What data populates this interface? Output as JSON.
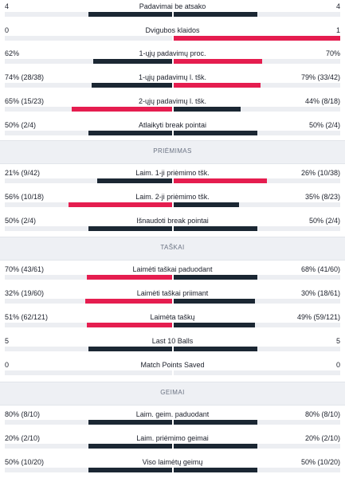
{
  "colors": {
    "winner": "#e51d4f",
    "loser": "#1b2733",
    "track": "#eceef2"
  },
  "sections": [
    {
      "title": "",
      "rows": [
        {
          "label": "Padavimai be atsako",
          "left": "4",
          "right": "4",
          "lp": 0.5,
          "rp": 0.5,
          "win": "none"
        },
        {
          "label": "Dvigubos klaidos",
          "left": "0",
          "right": "1",
          "lp": 0,
          "rp": 1,
          "win": "right"
        },
        {
          "label": "1-ųjų padavimų proc.",
          "left": "62%",
          "right": "70%",
          "lp": 0.47,
          "rp": 0.53,
          "win": "right"
        },
        {
          "label": "1-ųjų padavimų l. tšk.",
          "left": "74% (28/38)",
          "right": "79% (33/42)",
          "lp": 0.48,
          "rp": 0.52,
          "win": "right"
        },
        {
          "label": "2-ųjų padavimų l. tšk.",
          "left": "65% (15/23)",
          "right": "44% (8/18)",
          "lp": 0.6,
          "rp": 0.4,
          "win": "left"
        },
        {
          "label": "Atlaikyti break pointai",
          "left": "50% (2/4)",
          "right": "50% (2/4)",
          "lp": 0.5,
          "rp": 0.5,
          "win": "none"
        }
      ]
    },
    {
      "title": "PRIĖMIMAS",
      "rows": [
        {
          "label": "Laim. 1-ji priėmimo tšk.",
          "left": "21% (9/42)",
          "right": "26% (10/38)",
          "lp": 0.45,
          "rp": 0.56,
          "win": "right"
        },
        {
          "label": "Laim. 2-ji priėmimo tšk.",
          "left": "56% (10/18)",
          "right": "35% (8/23)",
          "lp": 0.62,
          "rp": 0.39,
          "win": "left"
        },
        {
          "label": "Išnaudoti break pointai",
          "left": "50% (2/4)",
          "right": "50% (2/4)",
          "lp": 0.5,
          "rp": 0.5,
          "win": "none"
        }
      ]
    },
    {
      "title": "TAŠKAI",
      "rows": [
        {
          "label": "Laimėti taškai paduodant",
          "left": "70% (43/61)",
          "right": "68% (41/60)",
          "lp": 0.51,
          "rp": 0.5,
          "win": "left"
        },
        {
          "label": "Laimėti taškai priimant",
          "left": "32% (19/60)",
          "right": "30% (18/61)",
          "lp": 0.52,
          "rp": 0.49,
          "win": "left"
        },
        {
          "label": "Laimėta taškų",
          "left": "51% (62/121)",
          "right": "49% (59/121)",
          "lp": 0.51,
          "rp": 0.49,
          "win": "left"
        },
        {
          "label": "Last 10 Balls",
          "left": "5",
          "right": "5",
          "lp": 0.5,
          "rp": 0.5,
          "win": "none"
        },
        {
          "label": "Match Points Saved",
          "left": "0",
          "right": "0",
          "lp": 0,
          "rp": 0,
          "win": "none"
        }
      ]
    },
    {
      "title": "GEIMAI",
      "rows": [
        {
          "label": "Laim. geim. paduodant",
          "left": "80% (8/10)",
          "right": "80% (8/10)",
          "lp": 0.5,
          "rp": 0.5,
          "win": "none"
        },
        {
          "label": "Laim. priėmimo geimai",
          "left": "20% (2/10)",
          "right": "20% (2/10)",
          "lp": 0.5,
          "rp": 0.5,
          "win": "none"
        },
        {
          "label": "Viso laimėtų geimų",
          "left": "50% (10/20)",
          "right": "50% (10/20)",
          "lp": 0.5,
          "rp": 0.5,
          "win": "none"
        }
      ]
    }
  ]
}
